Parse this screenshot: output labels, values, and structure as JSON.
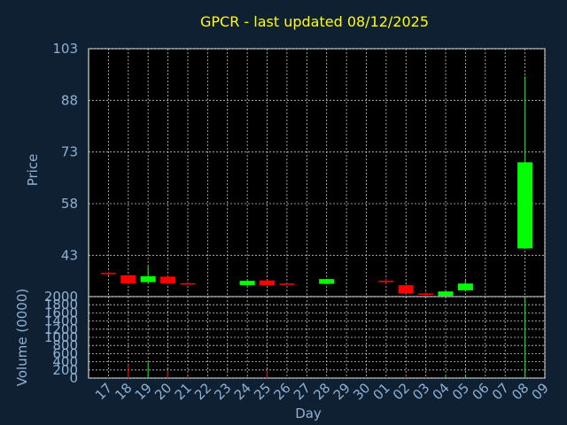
{
  "chart_data": {
    "type": "candlestick",
    "title": "GPCR - last updated 08/12/2025",
    "xlabel": "Day",
    "ylabel_price": "Price",
    "ylabel_volume": "Volume (0000)",
    "x_ticks": [
      "17",
      "18",
      "19",
      "20",
      "21",
      "22",
      "23",
      "24",
      "25",
      "26",
      "27",
      "28",
      "29",
      "30",
      "01",
      "02",
      "03",
      "04",
      "05",
      "06",
      "07",
      "08",
      "09"
    ],
    "price_yticks": [
      103,
      88,
      73,
      58,
      43
    ],
    "price_ylim": [
      31.0,
      103
    ],
    "volume_yticks": [
      2000,
      1800,
      1600,
      1400,
      1200,
      1000,
      800,
      600,
      400,
      200,
      0
    ],
    "volume_ylim": [
      0,
      2000
    ],
    "candles": [
      {
        "day": "17",
        "open": 37.9,
        "high": 38.3,
        "low": 37.2,
        "close": 37.6,
        "volume": 8
      },
      {
        "day": "18",
        "open": 37.2,
        "high": 37.4,
        "low": 34.5,
        "close": 34.8,
        "volume": 320
      },
      {
        "day": "19",
        "open": 35.2,
        "high": 40.0,
        "low": 35.0,
        "close": 36.9,
        "volume": 390
      },
      {
        "day": "20",
        "open": 36.8,
        "high": 37.0,
        "low": 34.6,
        "close": 34.8,
        "volume": 180
      },
      {
        "day": "21",
        "open": 34.9,
        "high": 35.4,
        "low": 34.3,
        "close": 34.6,
        "volume": 50
      },
      {
        "day": "24",
        "open": 34.3,
        "high": 35.6,
        "low": 34.1,
        "close": 35.6,
        "volume": 30
      },
      {
        "day": "25",
        "open": 35.7,
        "high": 35.8,
        "low": 34.2,
        "close": 34.3,
        "volume": 190
      },
      {
        "day": "26",
        "open": 34.8,
        "high": 35.0,
        "low": 34.5,
        "close": 34.6,
        "volume": 20
      },
      {
        "day": "28",
        "open": 34.7,
        "high": 36.2,
        "low": 34.6,
        "close": 36.1,
        "volume": 20
      },
      {
        "day": "01",
        "open": 35.6,
        "high": 36.3,
        "low": 34.8,
        "close": 35.2,
        "volume": 25
      },
      {
        "day": "02",
        "open": 34.3,
        "high": 34.5,
        "low": 31.7,
        "close": 31.9,
        "volume": 60
      },
      {
        "day": "03",
        "open": 31.9,
        "high": 32.3,
        "low": 31.4,
        "close": 31.6,
        "volume": 30
      },
      {
        "day": "04",
        "open": 31.2,
        "high": 32.6,
        "low": 31.0,
        "close": 32.5,
        "volume": 60
      },
      {
        "day": "05",
        "open": 32.8,
        "high": 35.8,
        "low": 32.5,
        "close": 34.8,
        "volume": 80
      },
      {
        "day": "08",
        "open": 45.0,
        "high": 95.0,
        "low": 45.0,
        "close": 70.0,
        "volume": 1980
      }
    ],
    "colors": {
      "up": "#00ff00",
      "down": "#ff0000",
      "title": "#ffff00",
      "axis_text": "#8fb1d3",
      "background": "#0f2032",
      "plot_background": "#000000"
    },
    "grid": true
  }
}
